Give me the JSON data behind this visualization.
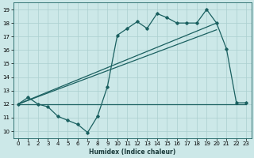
{
  "xlabel": "Humidex (Indice chaleur)",
  "xlim": [
    -0.5,
    23.5
  ],
  "ylim": [
    9.5,
    19.5
  ],
  "yticks": [
    10,
    11,
    12,
    13,
    14,
    15,
    16,
    17,
    18,
    19
  ],
  "xticks": [
    0,
    1,
    2,
    3,
    4,
    5,
    6,
    7,
    8,
    9,
    10,
    11,
    12,
    13,
    14,
    15,
    16,
    17,
    18,
    19,
    20,
    21,
    22,
    23
  ],
  "bg_color": "#cce8e8",
  "grid_color": "#aacfcf",
  "line_color": "#1a6060",
  "series1": {
    "x": [
      0,
      1,
      2,
      3,
      4,
      5,
      6,
      7,
      8,
      9,
      10,
      11,
      12,
      13,
      14,
      15,
      16,
      17,
      18,
      19,
      20,
      21,
      22,
      23
    ],
    "y": [
      12.0,
      12.5,
      12.0,
      11.8,
      11.1,
      10.8,
      10.5,
      9.9,
      11.1,
      13.3,
      17.1,
      17.6,
      18.1,
      17.6,
      18.7,
      18.4,
      18.0,
      18.0,
      18.0,
      19.0,
      18.0,
      16.1,
      12.1,
      12.1
    ]
  },
  "series2": {
    "x": [
      0,
      23
    ],
    "y": [
      12.0,
      12.0
    ]
  },
  "series3": {
    "x": [
      0,
      20
    ],
    "y": [
      12.0,
      18.0
    ]
  },
  "series4": {
    "x": [
      0,
      20
    ],
    "y": [
      12.0,
      17.5
    ]
  },
  "xlabel_fontsize": 5.5,
  "xlabel_fontweight": "bold",
  "tick_labelsize": 5.0,
  "line_width": 0.9,
  "marker": "D",
  "markersize": 1.8
}
